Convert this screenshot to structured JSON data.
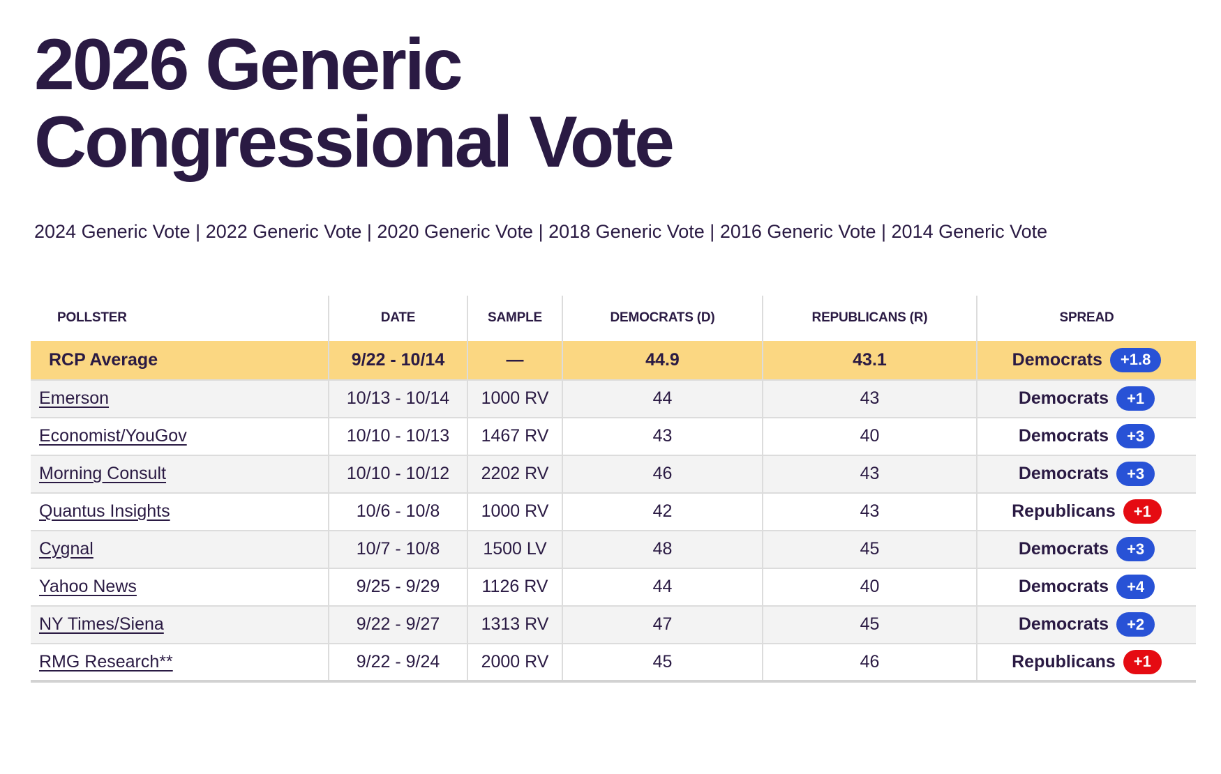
{
  "page": {
    "title": "2026 Generic Congressional Vote"
  },
  "nav": {
    "separator": "|",
    "links": [
      "2024 Generic Vote",
      "2022 Generic Vote",
      "2020 Generic Vote",
      "2018 Generic Vote",
      "2016 Generic Vote",
      "2014 Generic Vote"
    ]
  },
  "table": {
    "columns": [
      "POLLSTER",
      "DATE",
      "SAMPLE",
      "DEMOCRATS (D)",
      "REPUBLICANS (R)",
      "SPREAD"
    ],
    "average_row": {
      "pollster": "RCP Average",
      "date": "9/22 - 10/14",
      "sample": "—",
      "dem": "44.9",
      "rep": "43.1",
      "spread_party": "Democrats",
      "spread_value": "+1.8",
      "spread_color": "blue"
    },
    "rows": [
      {
        "pollster": "Emerson",
        "date": "10/13 - 10/14",
        "sample": "1000 RV",
        "dem": "44",
        "rep": "43",
        "spread_party": "Democrats",
        "spread_value": "+1",
        "spread_color": "blue"
      },
      {
        "pollster": "Economist/YouGov",
        "date": "10/10 - 10/13",
        "sample": "1467 RV",
        "dem": "43",
        "rep": "40",
        "spread_party": "Democrats",
        "spread_value": "+3",
        "spread_color": "blue"
      },
      {
        "pollster": "Morning Consult",
        "date": "10/10 - 10/12",
        "sample": "2202 RV",
        "dem": "46",
        "rep": "43",
        "spread_party": "Democrats",
        "spread_value": "+3",
        "spread_color": "blue"
      },
      {
        "pollster": "Quantus Insights",
        "date": "10/6 - 10/8",
        "sample": "1000 RV",
        "dem": "42",
        "rep": "43",
        "spread_party": "Republicans",
        "spread_value": "+1",
        "spread_color": "red"
      },
      {
        "pollster": "Cygnal",
        "date": "10/7 - 10/8",
        "sample": "1500 LV",
        "dem": "48",
        "rep": "45",
        "spread_party": "Democrats",
        "spread_value": "+3",
        "spread_color": "blue"
      },
      {
        "pollster": "Yahoo News",
        "date": "9/25 - 9/29",
        "sample": "1126 RV",
        "dem": "44",
        "rep": "40",
        "spread_party": "Democrats",
        "spread_value": "+4",
        "spread_color": "blue"
      },
      {
        "pollster": "NY Times/Siena",
        "date": "9/22 - 9/27",
        "sample": "1313 RV",
        "dem": "47",
        "rep": "45",
        "spread_party": "Democrats",
        "spread_value": "+2",
        "spread_color": "blue"
      },
      {
        "pollster": "RMG Research**",
        "date": "9/22 - 9/24",
        "sample": "2000 RV",
        "dem": "45",
        "rep": "46",
        "spread_party": "Republicans",
        "spread_value": "+1",
        "spread_color": "red"
      }
    ]
  },
  "colors": {
    "text": "#2A1A43",
    "average_row_bg": "#FBD782",
    "shaded_row_bg": "#F3F3F3",
    "democrats_pill": "#2852D6",
    "republicans_pill": "#E50B12"
  }
}
